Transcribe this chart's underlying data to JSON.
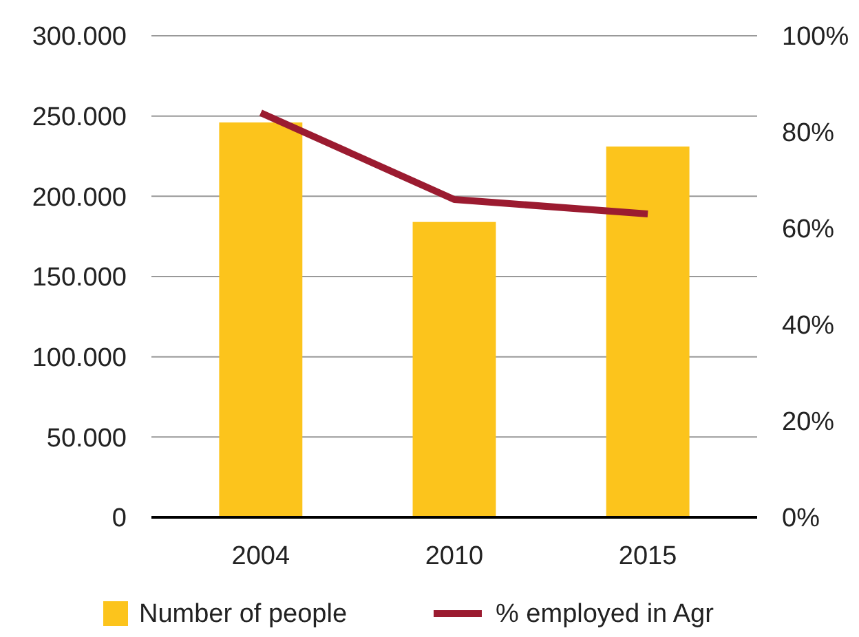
{
  "chart_data": {
    "type": "bar",
    "categories": [
      "2004",
      "2010",
      "2015"
    ],
    "series": [
      {
        "name": "Number of people",
        "color": "#fcc41c",
        "values": [
          246000,
          184000,
          231000
        ]
      },
      {
        "name": "% employed in Agr",
        "type": "line",
        "axis": "y2",
        "color": "#9b1b30",
        "values": [
          84,
          66,
          63
        ]
      }
    ],
    "ylim": [
      0,
      300000
    ],
    "yticks": [
      {
        "value": 0,
        "label": "0"
      },
      {
        "value": 50000,
        "label": "50.000"
      },
      {
        "value": 100000,
        "label": "100.000"
      },
      {
        "value": 150000,
        "label": "150.000"
      },
      {
        "value": 200000,
        "label": "200.000"
      },
      {
        "value": 250000,
        "label": "250.000"
      },
      {
        "value": 300000,
        "label": "300.000"
      }
    ],
    "y2lim": [
      0,
      100
    ],
    "y2ticks": [
      {
        "value": 0,
        "label": "0%"
      },
      {
        "value": 20,
        "label": "20%"
      },
      {
        "value": 40,
        "label": "40%"
      },
      {
        "value": 60,
        "label": "60%"
      },
      {
        "value": 80,
        "label": "80%"
      },
      {
        "value": 100,
        "label": "100%"
      }
    ],
    "grid": "y",
    "legend": "bottom",
    "marker": "none",
    "line_style": "solid"
  }
}
